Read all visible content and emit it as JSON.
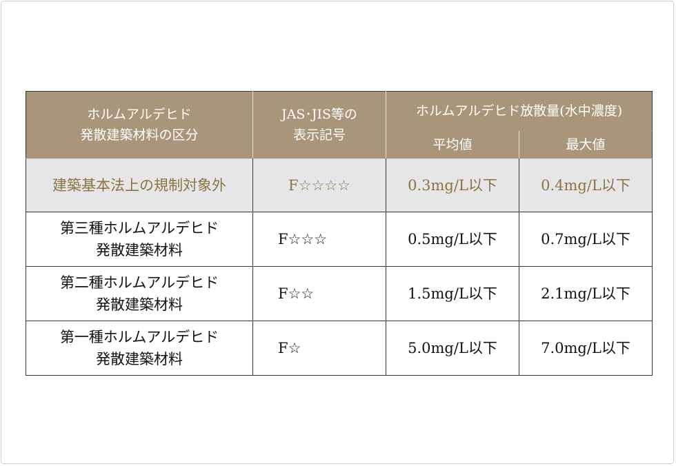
{
  "header": {
    "category": [
      "ホルムアルデヒド",
      "発散建築材料の区分"
    ],
    "symbol": [
      "JAS･JIS等の",
      "表示記号"
    ],
    "emission": "ホルムアルデヒド放散量(水中濃度)",
    "average": "平均値",
    "maximum": "最大値"
  },
  "rows": [
    {
      "category": [
        "建築基本法上の規制対象外"
      ],
      "symbol": "F☆☆☆☆",
      "average": "0.3mg/L以下",
      "maximum": "0.4mg/L以下"
    },
    {
      "category": [
        "第三種ホルムアルデヒド",
        "発散建築材料"
      ],
      "symbol": "F☆☆☆",
      "average": "0.5mg/L以下",
      "maximum": "0.7mg/L以下"
    },
    {
      "category": [
        "第二種ホルムアルデヒド",
        "発散建築材料"
      ],
      "symbol": "F☆☆",
      "average": "1.5mg/L以下",
      "maximum": "2.1mg/L以下"
    },
    {
      "category": [
        "第一種ホルムアルデヒド",
        "発散建築材料"
      ],
      "symbol": "F☆",
      "average": "5.0mg/L以下",
      "maximum": "7.0mg/L以下"
    }
  ],
  "colors": {
    "header_bg": "#a8957a",
    "exempt_row_bg": "#e6e6e8",
    "exempt_text": "#8a7540"
  }
}
